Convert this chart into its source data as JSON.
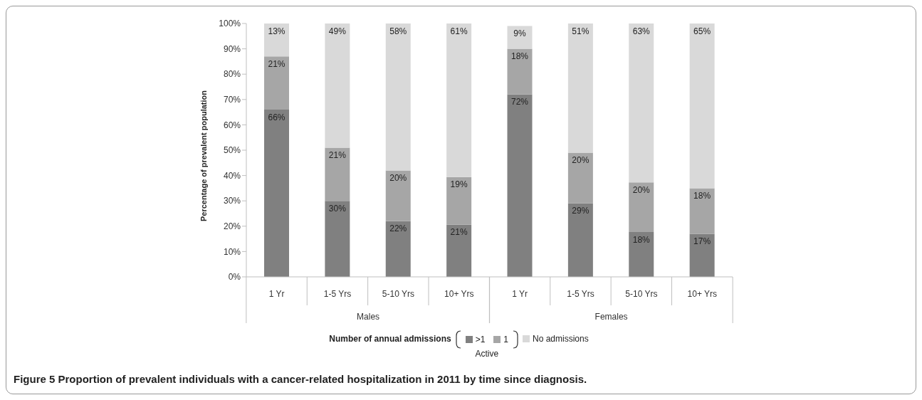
{
  "chart_data": {
    "type": "bar",
    "title": "Figure 5 Proportion of prevalent individuals with a cancer-related hospitalization in 2011 by time since diagnosis.",
    "ylabel": "Percentage of prevalent population",
    "legend_title": "Number of annual admissions",
    "annotations": [
      "Males",
      "Females",
      "Active"
    ],
    "categories": [
      "1 Yr",
      "1-5 Yrs",
      "5-10 Yrs",
      "10+ Yrs",
      "1 Yr",
      "1-5 Yrs",
      "5-10 Yrs",
      "10+ Yrs"
    ],
    "series": [
      {
        "name": ">1",
        "color": "#808080",
        "values": [
          66,
          30,
          22,
          20.6,
          72,
          29,
          17.7,
          17
        ],
        "value_labels": [
          "66%",
          "30%",
          "22%",
          "21%",
          "72%",
          "29%",
          "18%",
          "17%"
        ]
      },
      {
        "name": "1",
        "color": "#a6a6a6",
        "values": [
          21,
          21,
          20,
          18.8,
          18,
          20,
          19.6,
          18
        ],
        "value_labels": [
          "21%",
          "21%",
          "20%",
          "19%",
          "18%",
          "20%",
          "20%",
          "18%"
        ]
      },
      {
        "name": "No admissions",
        "color": "#d9d9d9",
        "values": [
          13,
          49,
          58,
          60.6,
          9,
          51,
          62.7,
          65
        ],
        "value_labels": [
          "13%",
          "49%",
          "58%",
          "61%",
          "9%",
          "51%",
          "63%",
          "65%"
        ]
      }
    ],
    "stacked": true,
    "ylim": [
      0,
      100
    ],
    "yticks": [
      {
        "value": 0,
        "label": "0%"
      },
      {
        "value": 10,
        "label": "10%"
      },
      {
        "value": 20,
        "label": "20%"
      },
      {
        "value": 30,
        "label": "30%"
      },
      {
        "value": 40,
        "label": "40%"
      },
      {
        "value": 50,
        "label": "50%"
      },
      {
        "value": 60,
        "label": "60%"
      },
      {
        "value": 70,
        "label": "70%"
      },
      {
        "value": 80,
        "label": "80%"
      },
      {
        "value": 90,
        "label": "90%"
      },
      {
        "value": 100,
        "label": "100%"
      }
    ],
    "legend": "bottom"
  }
}
